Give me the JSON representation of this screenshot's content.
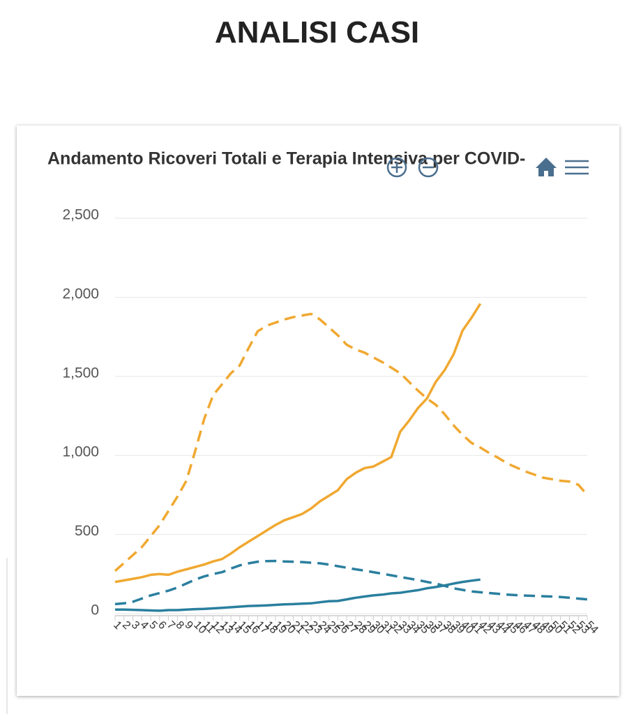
{
  "header": {
    "title": "ANALISI CASI"
  },
  "chart_data": {
    "type": "line",
    "title": "Andamento Ricoveri Totali e Terapia Intensiva per COVID-",
    "categories": [
      "1",
      "2",
      "3",
      "4",
      "5",
      "6",
      "7",
      "8",
      "9",
      "10",
      "11",
      "12",
      "13",
      "14",
      "15",
      "16",
      "17",
      "18",
      "19",
      "20",
      "21",
      "22",
      "23",
      "24",
      "25",
      "26",
      "27",
      "28",
      "29",
      "30",
      "31",
      "32",
      "33",
      "34",
      "35",
      "36",
      "37",
      "38",
      "39",
      "40",
      "41",
      "42",
      "43",
      "44",
      "45",
      "46",
      "47",
      "48",
      "49",
      "50",
      "51",
      "52",
      "53",
      "54"
    ],
    "series": [
      {
        "color": "#f0a830",
        "dashed": true,
        "values": [
          270,
          320,
          370,
          420,
          490,
          560,
          650,
          740,
          840,
          1030,
          1230,
          1380,
          1450,
          1520,
          1570,
          1680,
          1785,
          1820,
          1840,
          1860,
          1875,
          1885,
          1895,
          1860,
          1810,
          1760,
          1700,
          1670,
          1650,
          1620,
          1590,
          1555,
          1520,
          1465,
          1410,
          1360,
          1320,
          1260,
          1190,
          1130,
          1080,
          1050,
          1015,
          985,
          950,
          925,
          900,
          880,
          860,
          850,
          840,
          835,
          815,
          750
        ]
      },
      {
        "color": "#f0a830",
        "dashed": false,
        "values": [
          200,
          210,
          220,
          230,
          245,
          250,
          245,
          265,
          280,
          295,
          310,
          330,
          345,
          380,
          420,
          455,
          490,
          525,
          560,
          590,
          610,
          630,
          665,
          710,
          745,
          780,
          850,
          890,
          920,
          930,
          960,
          990,
          1150,
          1220,
          1300,
          1360,
          1465,
          1540,
          1640,
          1790,
          1870,
          1960,
          null,
          null,
          null,
          null,
          null,
          null,
          null,
          null,
          null,
          null,
          null,
          null
        ]
      },
      {
        "color": "#2a7f9e",
        "dashed": true,
        "values": [
          60,
          65,
          75,
          95,
          115,
          130,
          145,
          165,
          190,
          215,
          235,
          250,
          262,
          285,
          305,
          318,
          328,
          332,
          333,
          330,
          328,
          326,
          322,
          318,
          310,
          300,
          290,
          280,
          272,
          262,
          252,
          242,
          232,
          222,
          212,
          200,
          190,
          175,
          160,
          150,
          140,
          135,
          130,
          125,
          120,
          117,
          114,
          112,
          110,
          108,
          105,
          100,
          95,
          90
        ]
      },
      {
        "color": "#2a7f9e",
        "dashed": false,
        "values": [
          25,
          25,
          24,
          22,
          20,
          18,
          22,
          22,
          25,
          28,
          30,
          33,
          36,
          40,
          44,
          48,
          50,
          52,
          55,
          58,
          60,
          63,
          65,
          72,
          78,
          80,
          90,
          100,
          108,
          115,
          120,
          128,
          132,
          140,
          148,
          160,
          168,
          178,
          190,
          200,
          208,
          215,
          null,
          null,
          null,
          null,
          null,
          null,
          null,
          null,
          null,
          null,
          null,
          null
        ]
      }
    ],
    "ylim": [
      0,
      2500
    ],
    "yticks": [
      0,
      500,
      {
        "value": 1000,
        "label": "1,000"
      },
      {
        "value": 1500,
        "label": "1,500"
      },
      {
        "value": 2000,
        "label": "2,000"
      },
      {
        "value": 2500,
        "label": "2,500"
      }
    ],
    "grid": true
  }
}
